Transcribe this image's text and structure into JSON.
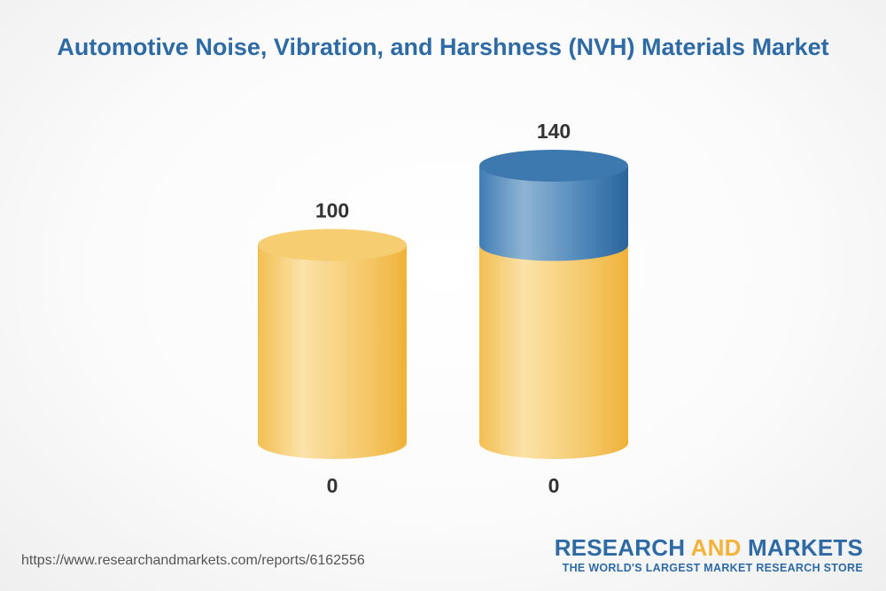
{
  "title": "Automotive Noise, Vibration, and Harshness (NVH) Materials Market",
  "source_url": "https://www.researchandmarkets.com/reports/6162556",
  "logo": {
    "word1": "RESEARCH",
    "word2": "AND",
    "word3": "MARKETS",
    "tagline": "THE WORLD'S LARGEST MARKET RESEARCH STORE"
  },
  "colors": {
    "title": "#2e6aa3",
    "base_gold": "#f2b33c",
    "growth_blue": "#2e6aa3",
    "label": "#333333"
  },
  "chart_data": {
    "type": "bar",
    "title": "Automotive Noise, Vibration, and Harshness (NVH) Materials Market",
    "series": [
      {
        "name": "",
        "values": [
          100,
          100
        ]
      },
      {
        "name": "",
        "values": [
          0,
          40
        ]
      }
    ],
    "top_labels": [
      "100",
      "140"
    ],
    "bottom_labels": [
      "0",
      "0"
    ],
    "ylim": [
      0,
      140
    ],
    "grid": false,
    "legend": "none"
  }
}
